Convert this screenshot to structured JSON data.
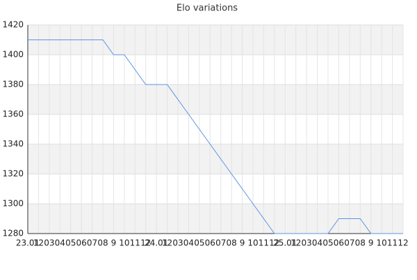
{
  "chart_data": {
    "type": "line",
    "title": "Elo variations",
    "categories": [
      "23.01",
      "12",
      "03",
      "04",
      "05",
      "06",
      "07",
      "08",
      "9",
      "10",
      "11",
      "12",
      "24.01",
      "12",
      "03",
      "04",
      "05",
      "06",
      "07",
      "08",
      "9",
      "10",
      "11",
      "12",
      "25.01",
      "12",
      "03",
      "04",
      "05",
      "06",
      "07",
      "08",
      "9",
      "10",
      "11",
      "12"
    ],
    "series": [
      {
        "name": "Elo",
        "color": "#5b93e0",
        "values": [
          1410,
          1410,
          1410,
          1410,
          1410,
          1410,
          1410,
          1410,
          1400,
          1400,
          1390,
          1380,
          1380,
          1380,
          1370,
          1360,
          1350,
          1340,
          1330,
          1320,
          1310,
          1300,
          1290,
          1280,
          1280,
          1280,
          1280,
          1280,
          1280,
          1290,
          1290,
          1290,
          1280,
          1280,
          1280,
          1280
        ]
      }
    ],
    "ylim": [
      1280,
      1420
    ],
    "yticks": [
      1280,
      1300,
      1320,
      1340,
      1360,
      1380,
      1400,
      1420
    ],
    "grid": true
  }
}
